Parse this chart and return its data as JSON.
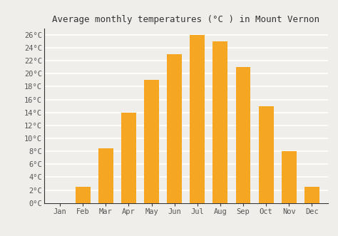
{
  "title": "Average monthly temperatures (°C ) in Mount Vernon",
  "months": [
    "Jan",
    "Feb",
    "Mar",
    "Apr",
    "May",
    "Jun",
    "Jul",
    "Aug",
    "Sep",
    "Oct",
    "Nov",
    "Dec"
  ],
  "values": [
    0,
    2.5,
    8.5,
    14,
    19,
    23,
    26,
    25,
    21,
    15,
    8,
    2.5
  ],
  "bar_color": "#F5A623",
  "background_color": "#F0EEEA",
  "plot_bg_color": "#F0EEEA",
  "grid_color": "#FFFFFF",
  "ylim": [
    0,
    27
  ],
  "yticks": [
    0,
    2,
    4,
    6,
    8,
    10,
    12,
    14,
    16,
    18,
    20,
    22,
    24,
    26
  ],
  "ytick_labels": [
    "0°C",
    "2°C",
    "4°C",
    "6°C",
    "8°C",
    "10°C",
    "12°C",
    "14°C",
    "16°C",
    "18°C",
    "20°C",
    "22°C",
    "24°C",
    "26°C"
  ],
  "title_fontsize": 9,
  "tick_fontsize": 7.5,
  "bar_width": 0.65,
  "spine_color": "#333333",
  "tick_color": "#555555"
}
